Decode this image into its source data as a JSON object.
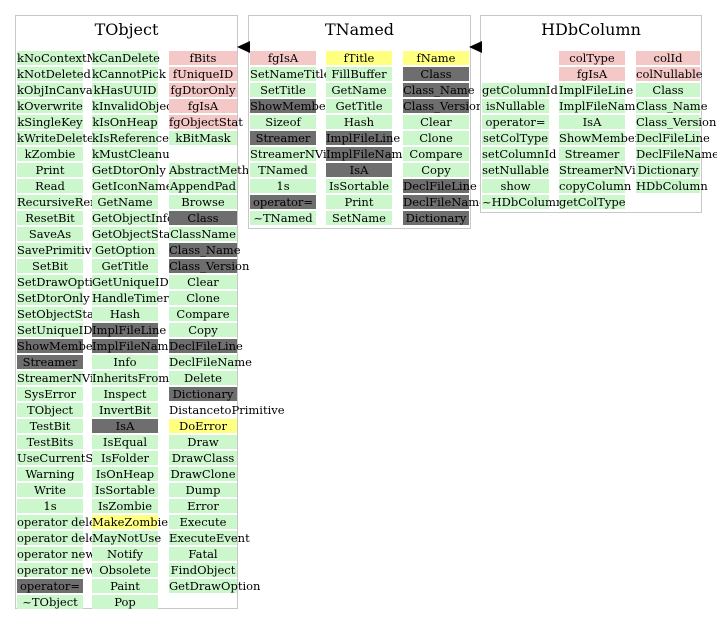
{
  "colors": {
    "data_member": "#f5c8c8",
    "method": "#ccf7cc",
    "inherited": "#6e6e6e",
    "overridden": "#ffff80",
    "none": "#ffffff"
  },
  "classes": [
    {
      "name": "TObject",
      "columns": [
        {
          "items": [
            {
              "t": "kNoContextMenu",
              "k": "method"
            },
            {
              "t": "kNotDeleted",
              "k": "method"
            },
            {
              "t": "kObjInCanvas",
              "k": "method"
            },
            {
              "t": "kOverwrite",
              "k": "method"
            },
            {
              "t": "kSingleKey",
              "k": "method"
            },
            {
              "t": "kWriteDelete",
              "k": "method"
            },
            {
              "t": "kZombie",
              "k": "method"
            },
            {
              "t": "Print",
              "k": "method"
            },
            {
              "t": "Read",
              "k": "method"
            },
            {
              "t": "RecursiveRemove",
              "k": "method"
            },
            {
              "t": "ResetBit",
              "k": "method"
            },
            {
              "t": "SaveAs",
              "k": "method"
            },
            {
              "t": "SavePrimitive",
              "k": "method"
            },
            {
              "t": "SetBit",
              "k": "method"
            },
            {
              "t": "SetDrawOption",
              "k": "method"
            },
            {
              "t": "SetDtorOnly",
              "k": "method"
            },
            {
              "t": "SetObjectStat",
              "k": "method"
            },
            {
              "t": "SetUniqueID",
              "k": "method"
            },
            {
              "t": "ShowMembers",
              "k": "inherited"
            },
            {
              "t": "Streamer",
              "k": "inherited"
            },
            {
              "t": "StreamerNVirtual",
              "k": "method"
            },
            {
              "t": "SysError",
              "k": "method"
            },
            {
              "t": "TObject",
              "k": "method"
            },
            {
              "t": "TestBit",
              "k": "method"
            },
            {
              "t": "TestBits",
              "k": "method"
            },
            {
              "t": "UseCurrentStyle",
              "k": "method"
            },
            {
              "t": "Warning",
              "k": "method"
            },
            {
              "t": "Write",
              "k": "method"
            },
            {
              "t": "1s",
              "k": "method"
            },
            {
              "t": "operator delete",
              "k": "method"
            },
            {
              "t": "operator delete[]",
              "k": "method"
            },
            {
              "t": "operator new",
              "k": "method"
            },
            {
              "t": "operator new[]",
              "k": "method"
            },
            {
              "t": "operator=",
              "k": "inherited"
            },
            {
              "t": "~TObject",
              "k": "method"
            }
          ]
        },
        {
          "items": [
            {
              "t": "kCanDelete",
              "k": "method"
            },
            {
              "t": "kCannotPick",
              "k": "method"
            },
            {
              "t": "kHasUUID",
              "k": "method"
            },
            {
              "t": "kInvalidObject",
              "k": "method"
            },
            {
              "t": "kIsOnHeap",
              "k": "method"
            },
            {
              "t": "kIsReferenced",
              "k": "method"
            },
            {
              "t": "kMustCleanup",
              "k": "method"
            },
            {
              "t": "GetDtorOnly",
              "k": "method"
            },
            {
              "t": "GetIconName",
              "k": "method"
            },
            {
              "t": "GetName",
              "k": "method"
            },
            {
              "t": "GetObjectInfo",
              "k": "method"
            },
            {
              "t": "GetObjectStat",
              "k": "method"
            },
            {
              "t": "GetOption",
              "k": "method"
            },
            {
              "t": "GetTitle",
              "k": "method"
            },
            {
              "t": "GetUniqueID",
              "k": "method"
            },
            {
              "t": "HandleTimer",
              "k": "method"
            },
            {
              "t": "Hash",
              "k": "method"
            },
            {
              "t": "ImplFileLine",
              "k": "inherited"
            },
            {
              "t": "ImplFileName",
              "k": "inherited"
            },
            {
              "t": "Info",
              "k": "method"
            },
            {
              "t": "InheritsFrom",
              "k": "method"
            },
            {
              "t": "Inspect",
              "k": "method"
            },
            {
              "t": "InvertBit",
              "k": "method"
            },
            {
              "t": "IsA",
              "k": "inherited"
            },
            {
              "t": "IsEqual",
              "k": "method"
            },
            {
              "t": "IsFolder",
              "k": "method"
            },
            {
              "t": "IsOnHeap",
              "k": "method"
            },
            {
              "t": "IsSortable",
              "k": "method"
            },
            {
              "t": "IsZombie",
              "k": "method"
            },
            {
              "t": "MakeZombie",
              "k": "overridden"
            },
            {
              "t": "MayNotUse",
              "k": "method"
            },
            {
              "t": "Notify",
              "k": "method"
            },
            {
              "t": "Obsolete",
              "k": "method"
            },
            {
              "t": "Paint",
              "k": "method"
            },
            {
              "t": "Pop",
              "k": "method"
            }
          ]
        },
        {
          "items": [
            {
              "t": "fBits",
              "k": "data_member"
            },
            {
              "t": "fUniqueID",
              "k": "data_member"
            },
            {
              "t": "fgDtorOnly",
              "k": "data_member"
            },
            {
              "t": "fgIsA",
              "k": "data_member"
            },
            {
              "t": "fgObjectStat",
              "k": "data_member"
            },
            {
              "t": "kBitMask",
              "k": "method"
            },
            {
              "t": "",
              "k": "none"
            },
            {
              "t": "AbstractMethod",
              "k": "method"
            },
            {
              "t": "AppendPad",
              "k": "method"
            },
            {
              "t": "Browse",
              "k": "method"
            },
            {
              "t": "Class",
              "k": "inherited"
            },
            {
              "t": "ClassName",
              "k": "method"
            },
            {
              "t": "Class_Name",
              "k": "inherited"
            },
            {
              "t": "Class_Version",
              "k": "inherited"
            },
            {
              "t": "Clear",
              "k": "method"
            },
            {
              "t": "Clone",
              "k": "method"
            },
            {
              "t": "Compare",
              "k": "method"
            },
            {
              "t": "Copy",
              "k": "method"
            },
            {
              "t": "DeclFileLine",
              "k": "inherited"
            },
            {
              "t": "DeclFileName",
              "k": "method"
            },
            {
              "t": "Delete",
              "k": "method"
            },
            {
              "t": "Dictionary",
              "k": "inherited"
            },
            {
              "t": "DistancetoPrimitive",
              "k": "none"
            },
            {
              "t": "DoError",
              "k": "overridden"
            },
            {
              "t": "Draw",
              "k": "method"
            },
            {
              "t": "DrawClass",
              "k": "method"
            },
            {
              "t": "DrawClone",
              "k": "method"
            },
            {
              "t": "Dump",
              "k": "method"
            },
            {
              "t": "Error",
              "k": "method"
            },
            {
              "t": "Execute",
              "k": "method"
            },
            {
              "t": "ExecuteEvent",
              "k": "method"
            },
            {
              "t": "Fatal",
              "k": "method"
            },
            {
              "t": "FindObject",
              "k": "method"
            },
            {
              "t": "GetDrawOption",
              "k": "method"
            }
          ]
        }
      ]
    },
    {
      "name": "TNamed",
      "columns": [
        {
          "items": [
            {
              "t": "fgIsA",
              "k": "data_member"
            },
            {
              "t": "SetNameTitle",
              "k": "method"
            },
            {
              "t": "SetTitle",
              "k": "method"
            },
            {
              "t": "ShowMembers",
              "k": "inherited"
            },
            {
              "t": "Sizeof",
              "k": "method"
            },
            {
              "t": "Streamer",
              "k": "inherited"
            },
            {
              "t": "StreamerNVirtual",
              "k": "method"
            },
            {
              "t": "TNamed",
              "k": "method"
            },
            {
              "t": "1s",
              "k": "method"
            },
            {
              "t": "operator=",
              "k": "inherited"
            },
            {
              "t": "~TNamed",
              "k": "method"
            }
          ]
        },
        {
          "items": [
            {
              "t": "fTitle",
              "k": "overridden"
            },
            {
              "t": "FillBuffer",
              "k": "method"
            },
            {
              "t": "GetName",
              "k": "method"
            },
            {
              "t": "GetTitle",
              "k": "method"
            },
            {
              "t": "Hash",
              "k": "method"
            },
            {
              "t": "ImplFileLine",
              "k": "inherited"
            },
            {
              "t": "ImplFileName",
              "k": "inherited"
            },
            {
              "t": "IsA",
              "k": "inherited"
            },
            {
              "t": "IsSortable",
              "k": "method"
            },
            {
              "t": "Print",
              "k": "method"
            },
            {
              "t": "SetName",
              "k": "method"
            }
          ]
        },
        {
          "items": [
            {
              "t": "fName",
              "k": "overridden"
            },
            {
              "t": "Class",
              "k": "inherited"
            },
            {
              "t": "Class_Name",
              "k": "inherited"
            },
            {
              "t": "Class_Version",
              "k": "inherited"
            },
            {
              "t": "Clear",
              "k": "method"
            },
            {
              "t": "Clone",
              "k": "method"
            },
            {
              "t": "Compare",
              "k": "method"
            },
            {
              "t": "Copy",
              "k": "method"
            },
            {
              "t": "DeclFileLine",
              "k": "inherited"
            },
            {
              "t": "DeclFileName",
              "k": "inherited"
            },
            {
              "t": "Dictionary",
              "k": "inherited"
            }
          ]
        }
      ]
    },
    {
      "name": "HDbColumn",
      "columns": [
        {
          "items": [
            {
              "t": "",
              "k": "none"
            },
            {
              "t": "",
              "k": "none"
            },
            {
              "t": "getColumnId",
              "k": "method"
            },
            {
              "t": "isNullable",
              "k": "method"
            },
            {
              "t": "operator=",
              "k": "method"
            },
            {
              "t": "setColType",
              "k": "method"
            },
            {
              "t": "setColumnId",
              "k": "method"
            },
            {
              "t": "setNullable",
              "k": "method"
            },
            {
              "t": "show",
              "k": "method"
            },
            {
              "t": "~HDbColumn",
              "k": "method"
            }
          ]
        },
        {
          "items": [
            {
              "t": "colType",
              "k": "data_member"
            },
            {
              "t": "fgIsA",
              "k": "data_member"
            },
            {
              "t": "ImplFileLine",
              "k": "method"
            },
            {
              "t": "ImplFileName",
              "k": "method"
            },
            {
              "t": "IsA",
              "k": "method"
            },
            {
              "t": "ShowMembers",
              "k": "method"
            },
            {
              "t": "Streamer",
              "k": "method"
            },
            {
              "t": "StreamerNVirtual",
              "k": "method"
            },
            {
              "t": "copyColumn",
              "k": "method"
            },
            {
              "t": "getColType",
              "k": "method"
            }
          ]
        },
        {
          "items": [
            {
              "t": "colId",
              "k": "data_member"
            },
            {
              "t": "colNullable",
              "k": "data_member"
            },
            {
              "t": "Class",
              "k": "method"
            },
            {
              "t": "Class_Name",
              "k": "method"
            },
            {
              "t": "Class_Version",
              "k": "method"
            },
            {
              "t": "DeclFileLine",
              "k": "method"
            },
            {
              "t": "DeclFileName",
              "k": "method"
            },
            {
              "t": "Dictionary",
              "k": "method"
            },
            {
              "t": "HDbColumn",
              "k": "method"
            }
          ]
        }
      ]
    }
  ]
}
